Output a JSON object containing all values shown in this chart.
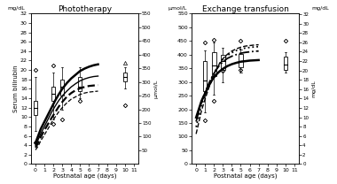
{
  "title_left": "Phototherapy",
  "title_right": "Exchange transfusion",
  "xlabel": "Postnatal age (days)",
  "ylabel": "Serum bilirubin",
  "xticks": [
    0,
    1,
    2,
    3,
    4,
    5,
    6,
    7,
    8,
    9,
    10,
    11
  ],
  "days": [
    0,
    0.3,
    0.6,
    1.0,
    1.4,
    1.8,
    2.2,
    2.6,
    3.0,
    3.5,
    4.0,
    4.5,
    5.0,
    5.5,
    6.0,
    6.5,
    7.0
  ],
  "photo_line1": [
    4.5,
    6.0,
    7.5,
    9.0,
    10.5,
    12.0,
    13.5,
    14.8,
    16.0,
    17.2,
    18.2,
    19.0,
    19.8,
    20.3,
    20.7,
    21.0,
    21.2
  ],
  "photo_line2": [
    4.0,
    5.2,
    6.5,
    8.0,
    9.5,
    11.0,
    12.3,
    13.5,
    14.5,
    15.5,
    16.4,
    17.1,
    17.7,
    18.1,
    18.4,
    18.6,
    18.7
  ],
  "photo_line3": [
    3.5,
    4.5,
    5.8,
    7.2,
    8.5,
    9.8,
    11.0,
    12.2,
    13.2,
    14.3,
    15.1,
    15.7,
    16.1,
    16.4,
    16.6,
    16.7,
    16.8
  ],
  "photo_line4": [
    3.0,
    3.8,
    5.0,
    6.2,
    7.5,
    8.8,
    10.0,
    11.1,
    12.0,
    13.0,
    13.8,
    14.3,
    14.8,
    15.1,
    15.3,
    15.4,
    15.5
  ],
  "exch_line1_umol": [
    170,
    200,
    230,
    258,
    285,
    308,
    325,
    338,
    348,
    358,
    365,
    370,
    374,
    376,
    378,
    379,
    380
  ],
  "exch_line2_umol": [
    155,
    192,
    228,
    262,
    293,
    320,
    342,
    360,
    374,
    386,
    394,
    400,
    405,
    408,
    410,
    412,
    413
  ],
  "exch_line3_umol": [
    135,
    175,
    215,
    252,
    287,
    318,
    344,
    366,
    383,
    397,
    407,
    415,
    420,
    424,
    426,
    428,
    429
  ],
  "exch_line4_umol": [
    110,
    152,
    195,
    237,
    276,
    311,
    341,
    366,
    385,
    401,
    413,
    421,
    427,
    431,
    433,
    435,
    436
  ],
  "photo_boxes": {
    "day0": {
      "x": 0,
      "q1": 10.5,
      "median": 12.0,
      "q3": 13.5,
      "whislo": 7.0,
      "whishi": 18.5,
      "outliers": [
        4.5,
        20.0
      ]
    },
    "day2": {
      "x": 2,
      "q1": 13.5,
      "median": 15.0,
      "q3": 16.5,
      "whislo": 9.5,
      "whishi": 19.5,
      "outliers": [
        8.5,
        21.0
      ]
    },
    "day3": {
      "x": 3,
      "q1": 14.5,
      "median": 16.5,
      "q3": 18.0,
      "whislo": 11.5,
      "whishi": 20.5,
      "outliers": [
        9.5
      ]
    },
    "day5": {
      "x": 5,
      "q1": 15.5,
      "median": 16.5,
      "q3": 18.5,
      "whislo": 14.0,
      "whishi": 20.5,
      "outliers": [
        13.5
      ]
    },
    "day10": {
      "x": 10,
      "q1": 17.5,
      "median": 18.5,
      "q3": 19.5,
      "whislo": 16.0,
      "whishi": 20.5,
      "outliers": [
        12.5
      ],
      "triangle": 21.5
    }
  },
  "exch_boxes_umol": {
    "day1": {
      "x": 1,
      "q1": 265,
      "median": 305,
      "q3": 375,
      "whislo": 190,
      "whishi": 415,
      "outliers": [
        160,
        445
      ]
    },
    "day2": {
      "x": 2,
      "q1": 320,
      "median": 360,
      "q3": 410,
      "whislo": 255,
      "whishi": 445,
      "outliers": [
        230,
        455
      ]
    },
    "day3": {
      "x": 3,
      "q1": 345,
      "median": 375,
      "q3": 400,
      "whislo": 300,
      "whishi": 425,
      "outliers": [
        340
      ]
    },
    "day5": {
      "x": 5,
      "q1": 355,
      "median": 378,
      "q3": 403,
      "whislo": 335,
      "whishi": 418,
      "outliers": [
        345,
        450
      ]
    },
    "day10": {
      "x": 10,
      "q1": 344,
      "median": 363,
      "q3": 392,
      "whislo": 335,
      "whishi": 408,
      "outliers": [
        450
      ]
    }
  }
}
